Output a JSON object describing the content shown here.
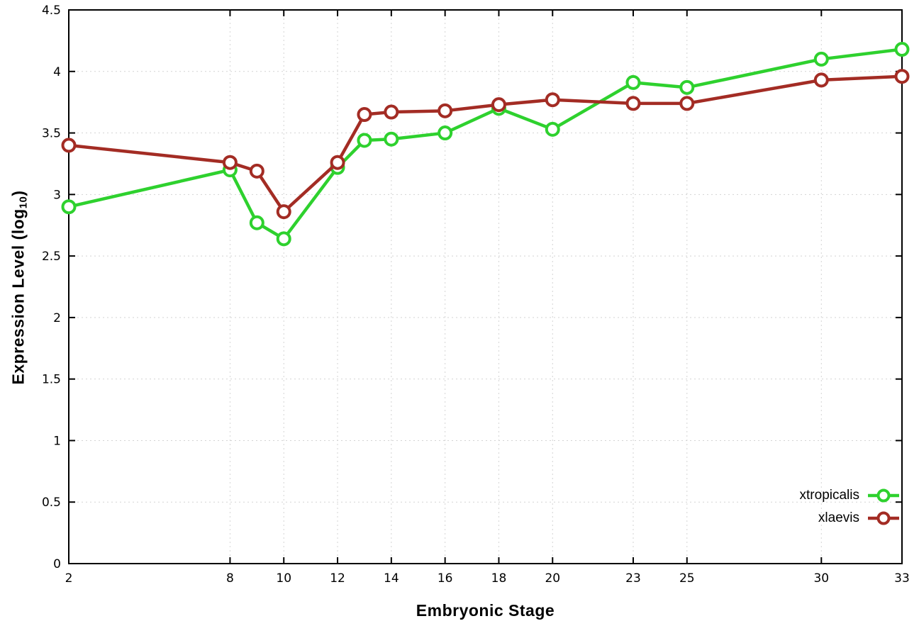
{
  "figure": {
    "xlabel": "Embryonic Stage",
    "ylabel_prefix": "Expression Level (log",
    "ylabel_sub": "10",
    "ylabel_suffix": ")"
  },
  "legend": {
    "items": [
      {
        "label": "xtropicalis"
      },
      {
        "label": "xlaevis"
      }
    ]
  },
  "chart_data": {
    "type": "line",
    "title": "",
    "xlabel": "Embryonic Stage",
    "ylabel": "Expression Level (log10)",
    "xlim": [
      2,
      33
    ],
    "ylim": [
      0,
      4.5
    ],
    "x_ticks": [
      2,
      8,
      10,
      12,
      14,
      16,
      18,
      20,
      23,
      25,
      30,
      33
    ],
    "y_ticks": [
      0,
      0.5,
      1,
      1.5,
      2,
      2.5,
      3,
      3.5,
      4,
      4.5
    ],
    "y_tick_labels": [
      "0",
      "0.5",
      "1",
      "1.5",
      "2",
      "2.5",
      "3",
      "3.5",
      "4",
      "4.5"
    ],
    "grid": true,
    "legend_position": "bottom-right",
    "marker": "open-circle",
    "x": [
      2,
      8,
      9,
      10,
      12,
      13,
      14,
      16,
      18,
      20,
      23,
      25,
      30,
      33
    ],
    "series": [
      {
        "name": "xtropicalis",
        "color": "#2ed12e",
        "values": [
          2.9,
          3.2,
          2.77,
          2.64,
          3.22,
          3.44,
          3.45,
          3.5,
          3.7,
          3.53,
          3.91,
          3.87,
          4.1,
          4.18
        ]
      },
      {
        "name": "xlaevis",
        "color": "#a32c24",
        "values": [
          3.4,
          3.26,
          3.19,
          2.86,
          3.26,
          3.65,
          3.67,
          3.68,
          3.73,
          3.77,
          3.74,
          3.74,
          3.93,
          3.96
        ]
      }
    ]
  }
}
